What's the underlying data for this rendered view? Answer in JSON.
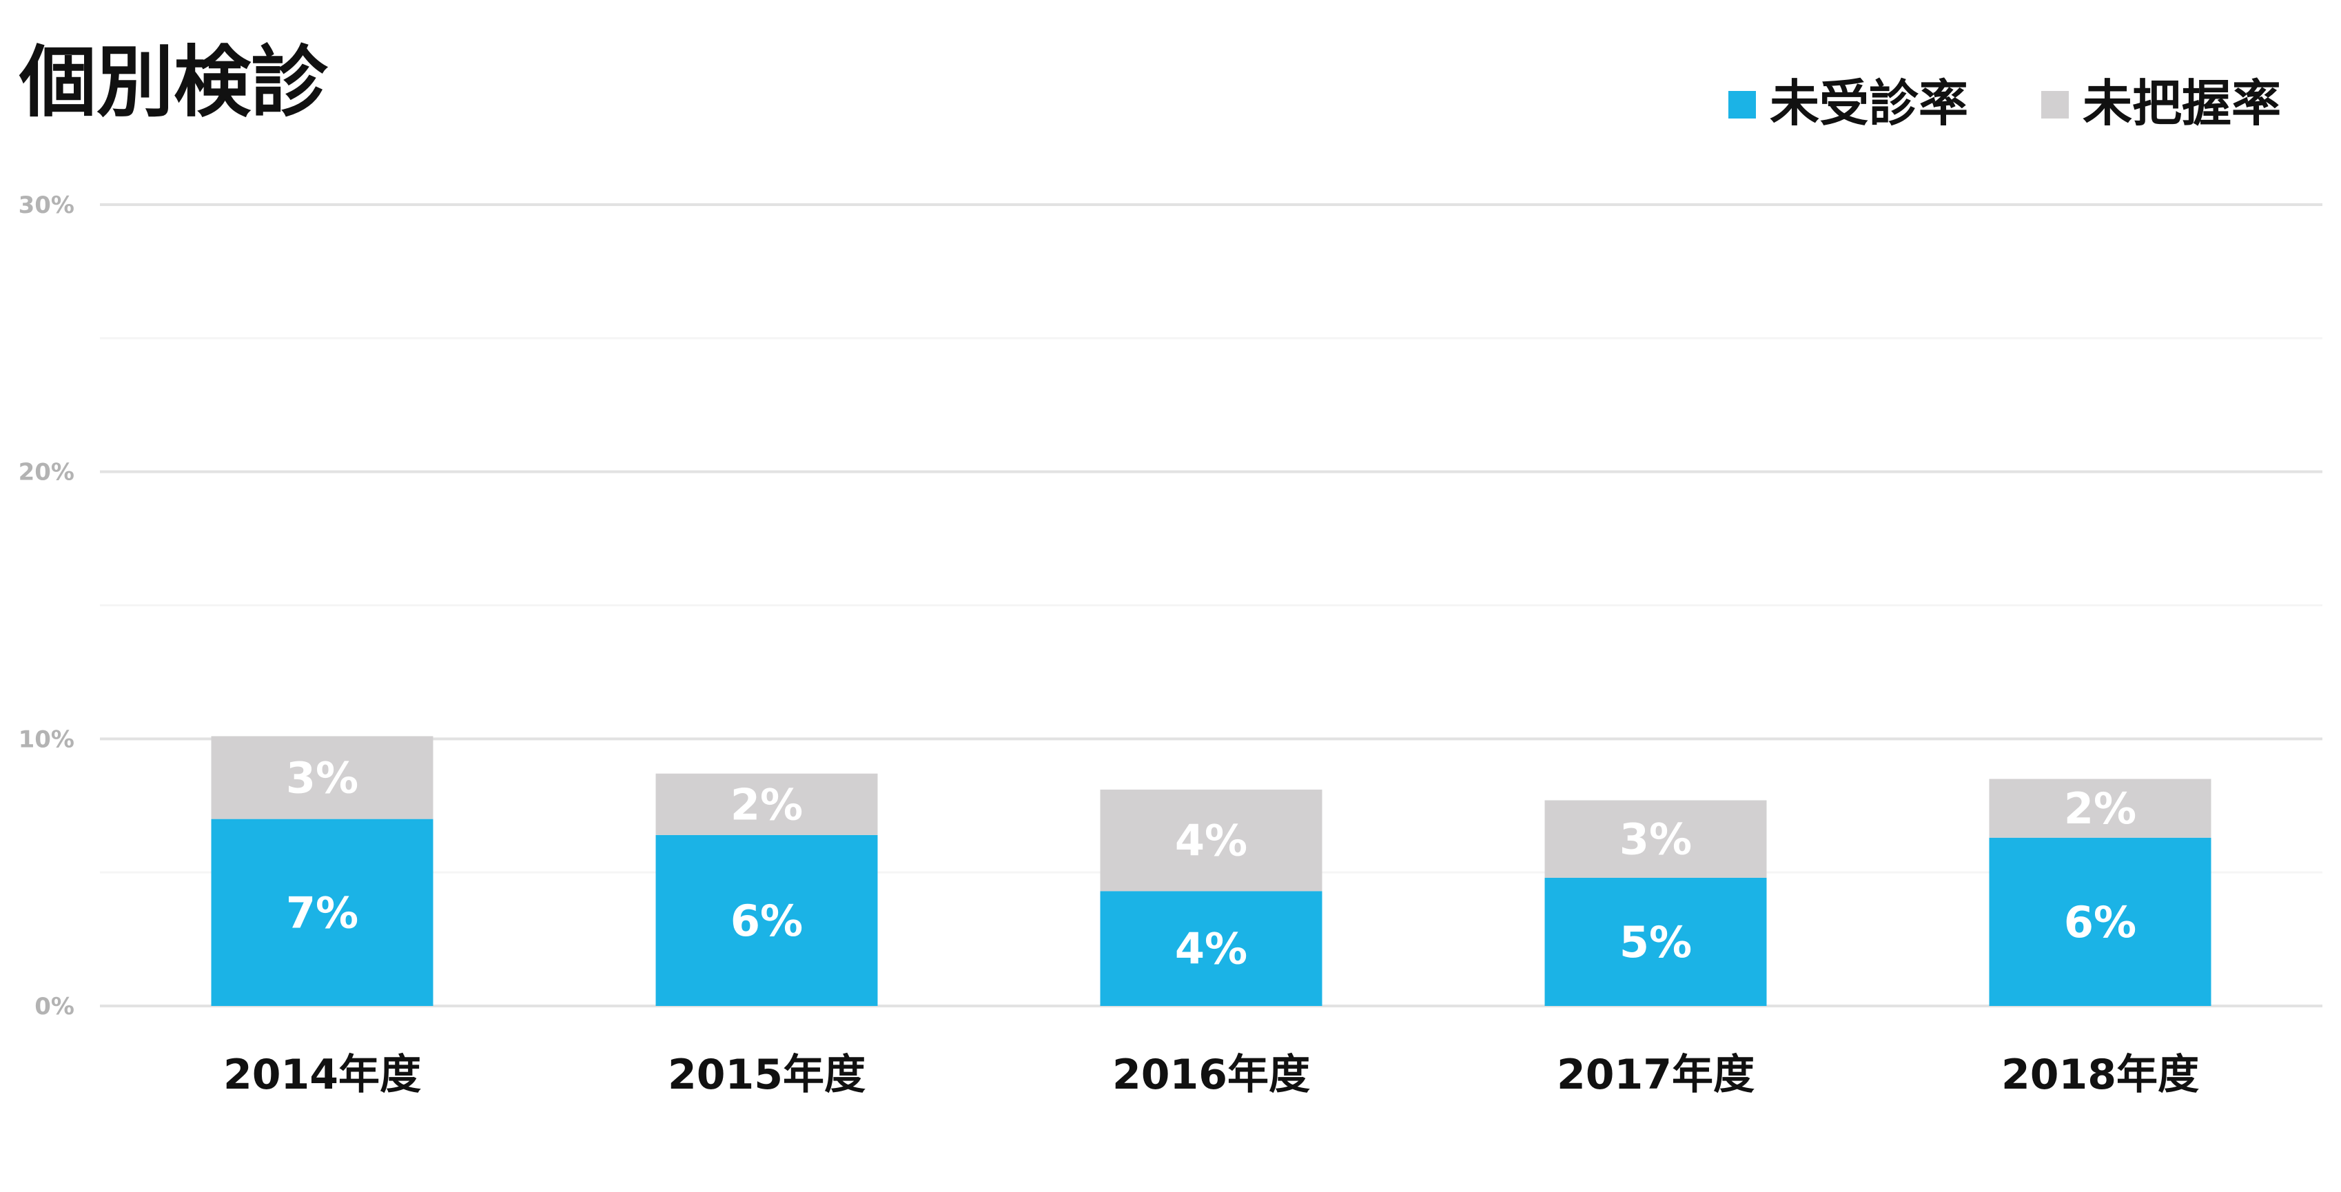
{
  "chart_data": {
    "type": "bar",
    "stacked": true,
    "title": "個別検診",
    "categories": [
      "2014年度",
      "2015年度",
      "2016年度",
      "2017年度",
      "2018年度"
    ],
    "series": [
      {
        "name": "未受診率",
        "color": "#1bb3e6",
        "values": [
          7.0,
          6.4,
          4.3,
          4.8,
          6.3
        ],
        "labels": [
          "7%",
          "6%",
          "4%",
          "5%",
          "6%"
        ]
      },
      {
        "name": "未把握率",
        "color": "#d2d0d1",
        "values": [
          3.1,
          2.3,
          3.8,
          2.9,
          2.2
        ],
        "labels": [
          "3%",
          "2%",
          "4%",
          "3%",
          "2%"
        ]
      }
    ],
    "ylim": [
      0,
      30
    ],
    "yticks": [
      0,
      10,
      20,
      30
    ],
    "ytick_labels": [
      "0%",
      "10%",
      "20%",
      "30%"
    ],
    "grid": true,
    "legend": "top-right",
    "xlabel": "",
    "ylabel": ""
  }
}
